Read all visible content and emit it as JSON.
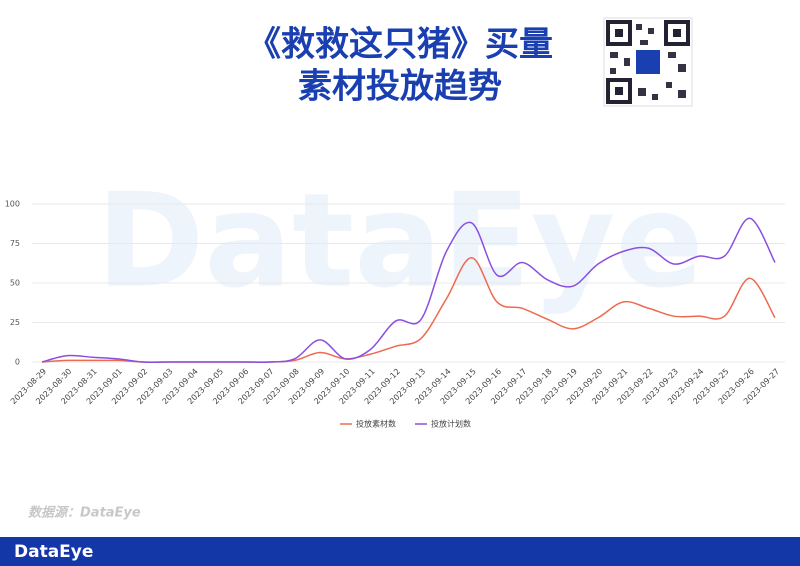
{
  "header": {
    "title_lines": [
      "《救救这只猪》买量",
      "素材投放趋势"
    ]
  },
  "watermark": "DataEye",
  "source": "数据源：DataEye",
  "footer": {
    "brand": "DataEye"
  },
  "chart_data": {
    "type": "line",
    "categories": [
      "2023-08-29",
      "2023-08-30",
      "2023-08-31",
      "2023-09-01",
      "2023-09-02",
      "2023-09-03",
      "2023-09-04",
      "2023-09-05",
      "2023-09-06",
      "2023-09-07",
      "2023-09-08",
      "2023-09-09",
      "2023-09-10",
      "2023-09-11",
      "2023-09-12",
      "2023-09-13",
      "2023-09-14",
      "2023-09-15",
      "2023-09-16",
      "2023-09-17",
      "2023-09-18",
      "2023-09-19",
      "2023-09-20",
      "2023-09-21",
      "2023-09-22",
      "2023-09-23",
      "2023-09-24",
      "2023-09-25",
      "2023-09-26",
      "2023-09-27"
    ],
    "series": [
      {
        "name": "投放素材数",
        "color": "#ee6a4f",
        "values": [
          0,
          1,
          1,
          1,
          0,
          0,
          0,
          0,
          0,
          0,
          1,
          6,
          2,
          5,
          10,
          15,
          40,
          66,
          38,
          34,
          27,
          21,
          28,
          38,
          34,
          29,
          29,
          29,
          53,
          28
        ]
      },
      {
        "name": "投放计划数",
        "color": "#8a4fe0",
        "values": [
          0,
          4,
          3,
          2,
          0,
          0,
          0,
          0,
          0,
          0,
          2,
          14,
          2,
          8,
          26,
          27,
          70,
          88,
          55,
          63,
          52,
          48,
          62,
          70,
          72,
          62,
          67,
          67,
          91,
          63
        ]
      }
    ],
    "ylim": [
      0,
      100
    ],
    "yticks": [
      0,
      25,
      50,
      75,
      100
    ],
    "grid": true,
    "smooth": true,
    "legend": "bottom"
  }
}
